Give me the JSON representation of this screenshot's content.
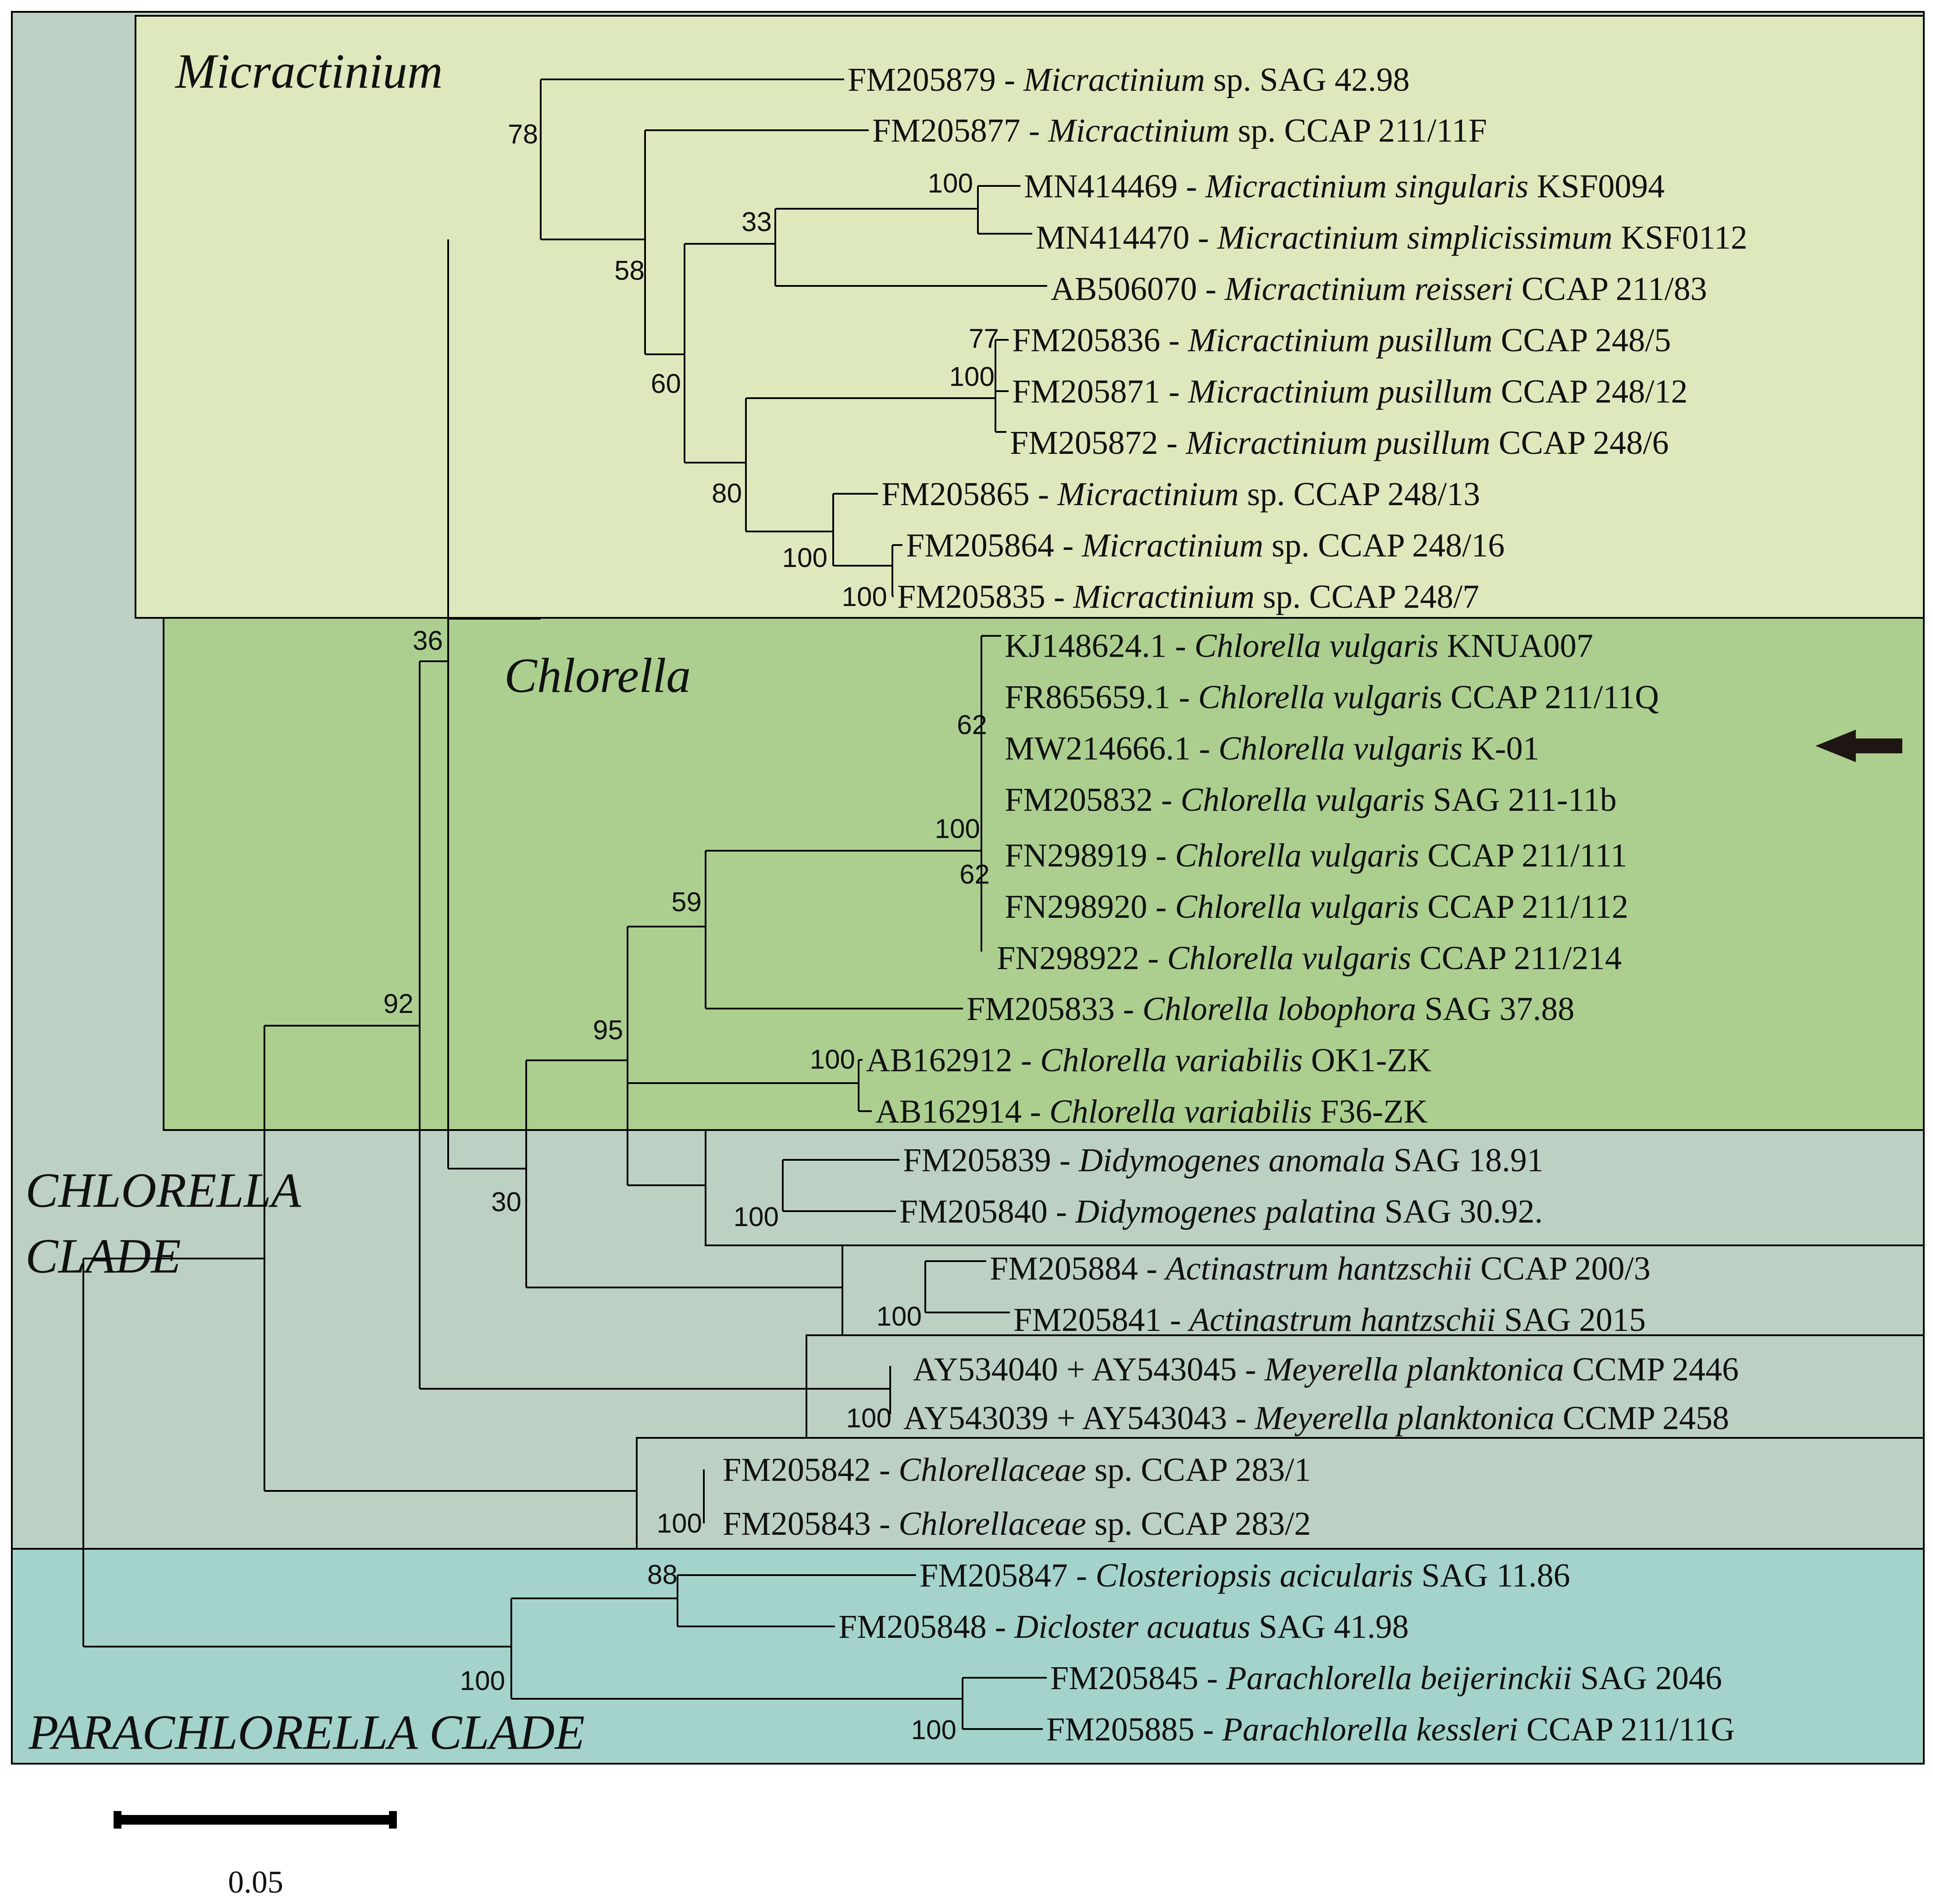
{
  "colors": {
    "chlorella_clade_bg": "#bcd0c4",
    "micractinium_bg": "#dde9bd",
    "chlorella_bg": "#accf90",
    "parachlorella_bg": "#a4d3cb",
    "line": "#000000"
  },
  "clades": {
    "micractinium": "Micractinium",
    "chlorella": "Chlorella",
    "chlorella_clade_line1": "CHLORELLA",
    "chlorella_clade_line2": "CLADE",
    "parachlorella_clade": "PARACHLORELLA CLADE"
  },
  "taxa": [
    {
      "acc": "FM205879 - ",
      "genus": "Micractinium",
      "rest": " sp. SAG 42.98"
    },
    {
      "acc": "FM205877 - ",
      "genus": "Micractinium",
      "rest": " sp. CCAP 211/11F"
    },
    {
      "acc": "MN414469 - ",
      "genus": "Micractinium singularis",
      "rest": " KSF0094"
    },
    {
      "acc": "MN414470 - ",
      "genus": "Micractinium simplicissimum",
      "rest": " KSF0112"
    },
    {
      "acc": "AB506070 - ",
      "genus": "Micractinium reisseri",
      "rest": " CCAP 211/83"
    },
    {
      "acc": "FM205836 - ",
      "genus": "Micractinium pusillum",
      "rest": " CCAP 248/5"
    },
    {
      "acc": "FM205871 - ",
      "genus": "Micractinium pusillum",
      "rest": " CCAP 248/12"
    },
    {
      "acc": "FM205872 - ",
      "genus": "Micractinium pusillum",
      "rest": " CCAP 248/6"
    },
    {
      "acc": "FM205865 - ",
      "genus": "Micractinium",
      "rest": " sp. CCAP 248/13"
    },
    {
      "acc": "FM205864 - ",
      "genus": "Micractinium",
      "rest": " sp. CCAP 248/16"
    },
    {
      "acc": "FM205835 - ",
      "genus": "Micractinium",
      "rest": " sp. CCAP 248/7"
    },
    {
      "acc": "KJ148624.1 - ",
      "genus": "Chlorella vulgaris",
      "rest": " KNUA007"
    },
    {
      "acc": "FR865659.1 - ",
      "genus": "Chlorella vulgari",
      "rest": "s CCAP 211/11Q"
    },
    {
      "acc": "MW214666.1 - ",
      "genus": "Chlorella vulgaris",
      "rest": " K-01"
    },
    {
      "acc": "FM205832 - ",
      "genus": "Chlorella vulgaris",
      "rest": " SAG 211-11b"
    },
    {
      "acc": "FN298919 - ",
      "genus": "Chlorella vulgaris",
      "rest": " CCAP 211/111"
    },
    {
      "acc": "FN298920 - ",
      "genus": "Chlorella vulgaris",
      "rest": " CCAP 211/112"
    },
    {
      "acc": "FN298922 - ",
      "genus": "Chlorella vulgaris",
      "rest": " CCAP 211/214"
    },
    {
      "acc": "FM205833 - ",
      "genus": "Chlorella lobophora",
      "rest": " SAG 37.88"
    },
    {
      "acc": "AB162912 - ",
      "genus": "Chlorella variabilis",
      "rest": " OK1-ZK"
    },
    {
      "acc": "AB162914 - ",
      "genus": "Chlorella variabilis",
      "rest": " F36-ZK"
    },
    {
      "acc": "FM205839 - ",
      "genus": "Didymogenes anomala",
      "rest": " SAG 18.91"
    },
    {
      "acc": "FM205840 - ",
      "genus": "Didymogenes palatina",
      "rest": " SAG 30.92."
    },
    {
      "acc": "FM205884 - ",
      "genus": "Actinastrum hantzschii",
      "rest": " CCAP 200/3"
    },
    {
      "acc": "FM205841 - ",
      "genus": "Actinastrum hantzschii",
      "rest": " SAG 2015"
    },
    {
      "acc": "AY534040 + AY543045 - ",
      "genus": "Meyerella planktonica",
      "rest": " CCMP 2446"
    },
    {
      "acc": "AY543039 + AY543043 - ",
      "genus": "Meyerella planktonica",
      "rest": " CCMP 2458"
    },
    {
      "acc": "FM205842 - ",
      "genus": "Chlorellaceae",
      "rest": " sp. CCAP 283/1"
    },
    {
      "acc": "FM205843 - ",
      "genus": "Chlorellaceae",
      "rest": " sp. CCAP 283/2"
    },
    {
      "acc": "FM205847 - ",
      "genus": "Closteriopsis acicularis",
      "rest": " SAG 11.86"
    },
    {
      "acc": "FM205848 - ",
      "genus": "Diclоster acuatus",
      "rest": " SAG 41.98"
    },
    {
      "acc": "FM205845 - ",
      "genus": "Parachlorella beijerinckii",
      "rest": " SAG 2046"
    },
    {
      "acc": "FM205885 - ",
      "genus": "Parachlorella kessleri",
      "rest": " CCAP 211/11G"
    }
  ],
  "support_values": [
    "78",
    "100",
    "33",
    "58",
    "60",
    "77",
    "100",
    "80",
    "100",
    "100",
    "36",
    "62",
    "100",
    "62",
    "59",
    "92",
    "95",
    "100",
    "30",
    "100",
    "100",
    "100",
    "100",
    "88",
    "100",
    "100"
  ],
  "scale_bar": {
    "value": 0.05,
    "label": "0.05"
  },
  "highlight_arrow_icon": "arrow-left-icon"
}
